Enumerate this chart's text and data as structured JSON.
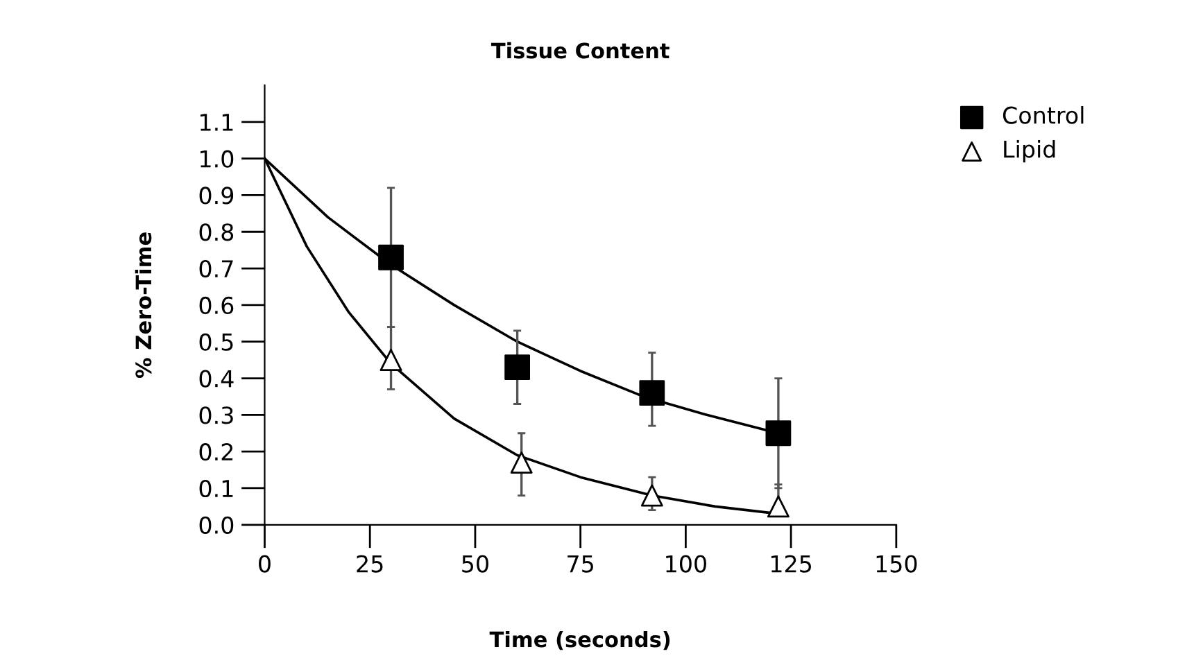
{
  "chart_data": {
    "type": "scatter",
    "title": "Tissue Content",
    "xlabel": "Time (seconds)",
    "ylabel": "% Zero-Time",
    "xlim": [
      0,
      150
    ],
    "xticks": [
      0,
      25,
      50,
      75,
      100,
      125,
      150
    ],
    "ylim": [
      0,
      1.2
    ],
    "yticks": [
      {
        "value": 0,
        "label": "0.0"
      },
      0.1,
      0.2,
      0.3,
      0.4,
      0.5,
      0.6,
      0.7,
      0.8,
      0.9,
      {
        "value": 1,
        "label": "1.0"
      },
      1.1
    ],
    "grid": false,
    "legend": "top right",
    "series": [
      {
        "name": "Control",
        "marker": "square",
        "color": "#000000",
        "x": [
          30,
          60,
          92,
          122
        ],
        "values": [
          0.73,
          0.43,
          0.36,
          0.25
        ],
        "errors": [
          [
            0.54,
            0.92
          ],
          [
            0.33,
            0.53
          ],
          [
            0.27,
            0.47
          ],
          [
            0.1,
            0.4
          ]
        ]
      },
      {
        "name": "Lipid",
        "marker": "triangle",
        "color": "#000000",
        "x": [
          30,
          61,
          92,
          122
        ],
        "values": [
          0.45,
          0.17,
          0.08,
          0.05
        ],
        "errors": [
          [
            0.37,
            0.54
          ],
          [
            0.08,
            0.25
          ],
          [
            0.04,
            0.13
          ],
          [
            0.05,
            0.11
          ]
        ]
      },
      {
        "type": "line",
        "marker": "none",
        "color": "#000000",
        "x": [
          0,
          15,
          30,
          45,
          60,
          75,
          90,
          105,
          122
        ],
        "values": [
          1.0,
          0.84,
          0.71,
          0.6,
          0.5,
          0.42,
          0.35,
          0.3,
          0.25
        ]
      },
      {
        "type": "line",
        "marker": "none",
        "color": "#000000",
        "x": [
          0,
          10,
          20,
          30,
          45,
          60,
          75,
          92,
          107,
          122
        ],
        "values": [
          1.0,
          0.76,
          0.58,
          0.44,
          0.29,
          0.19,
          0.13,
          0.08,
          0.05,
          0.03
        ]
      }
    ]
  }
}
